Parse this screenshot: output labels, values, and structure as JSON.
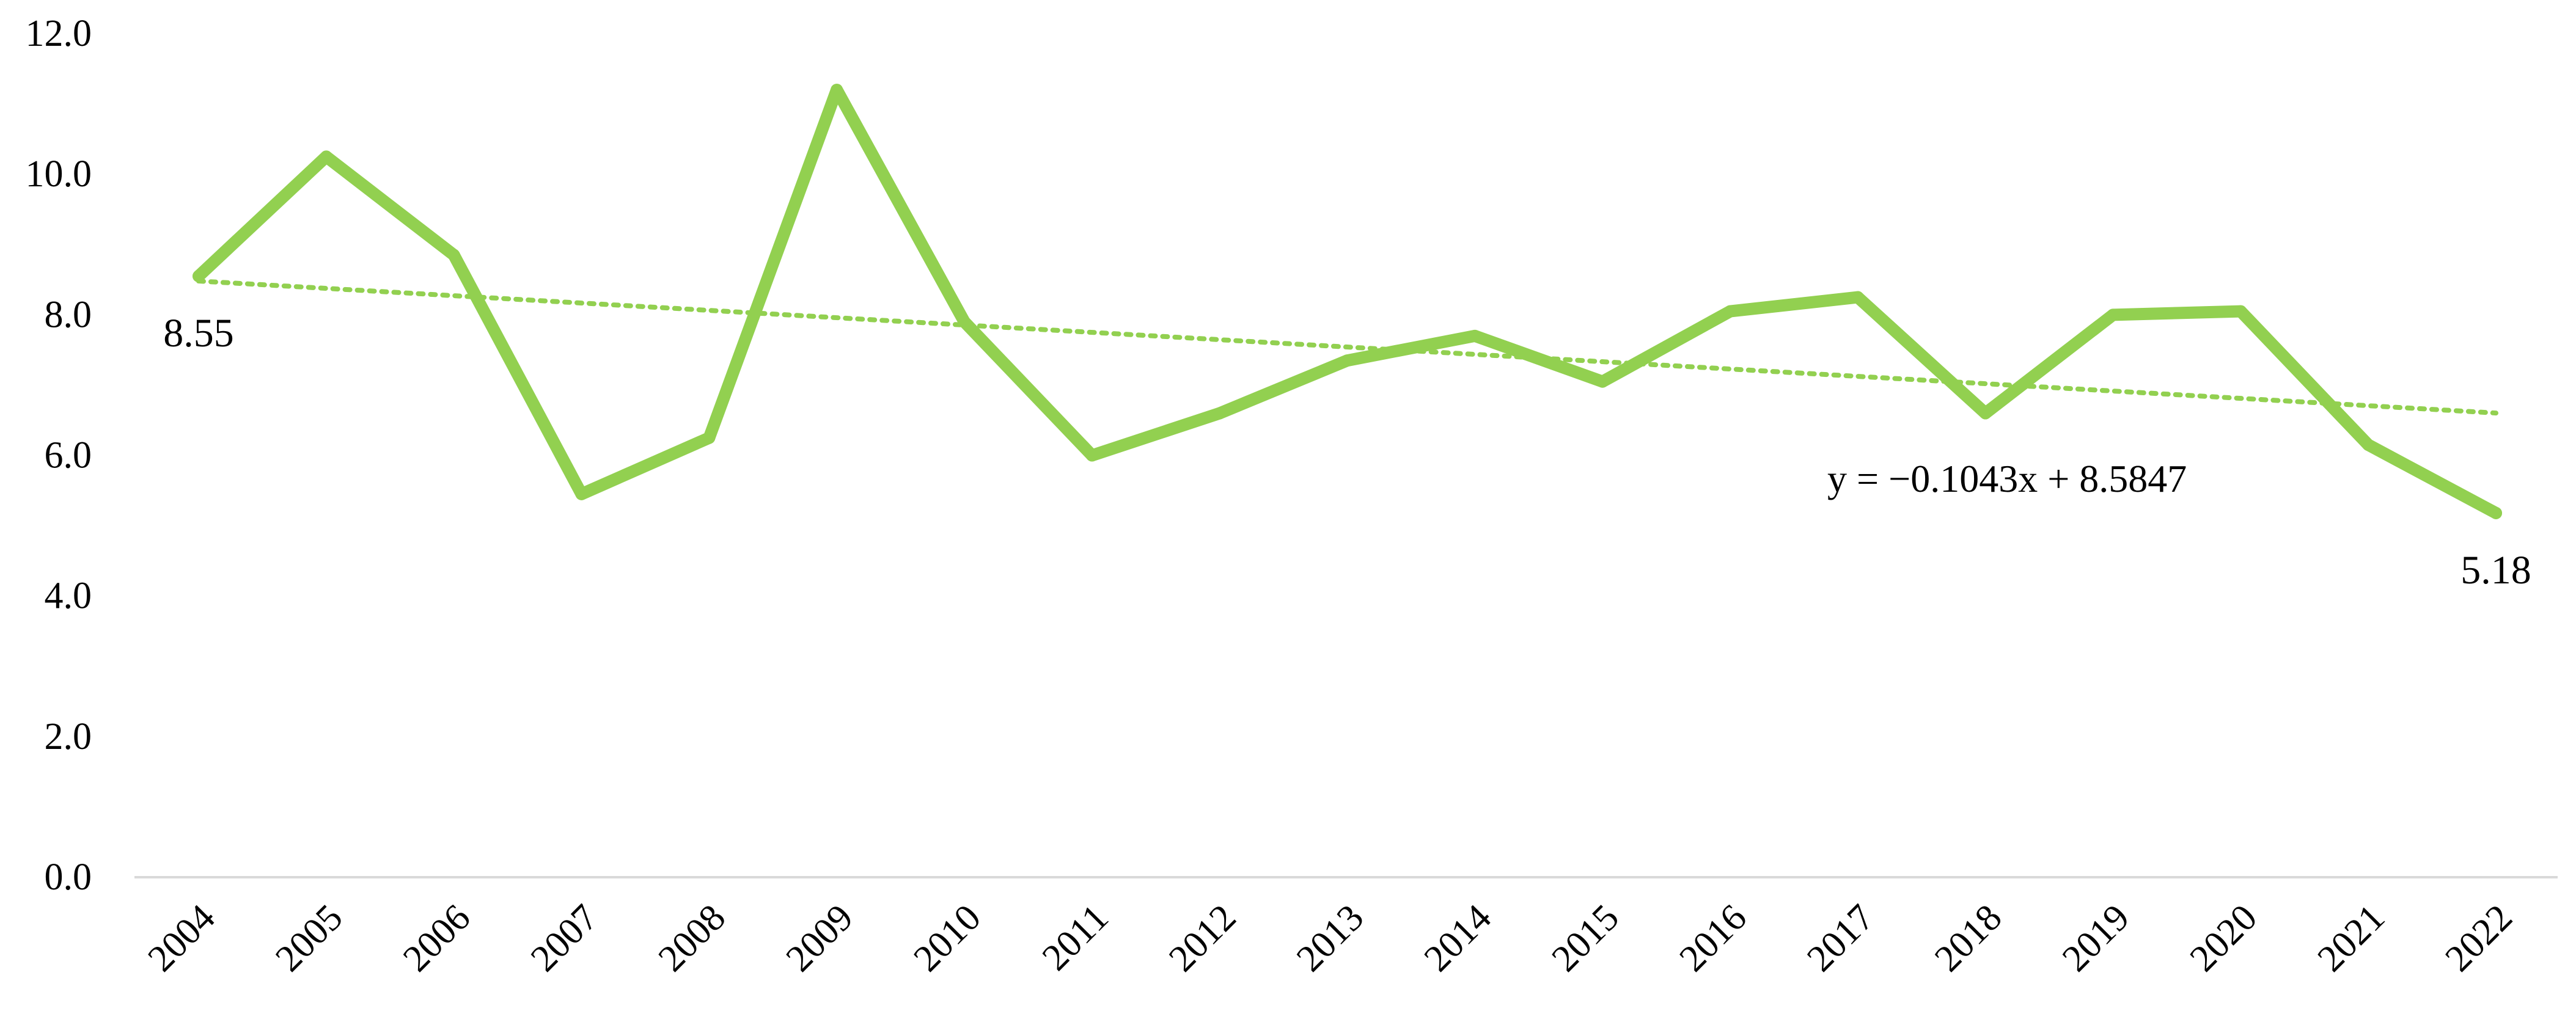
{
  "chart_data": {
    "type": "line",
    "x": [
      "2004",
      "2005",
      "2006",
      "2007",
      "2008",
      "2009",
      "2010",
      "2011",
      "2012",
      "2013",
      "2014",
      "2015",
      "2016",
      "2017",
      "2018",
      "2019",
      "2020",
      "2021",
      "2022"
    ],
    "series": [
      {
        "values": [
          8.55,
          10.25,
          8.85,
          5.45,
          6.25,
          11.2,
          7.9,
          6.0,
          6.6,
          7.35,
          7.7,
          7.05,
          8.05,
          8.25,
          6.6,
          8.0,
          8.05,
          6.15,
          5.18
        ]
      }
    ],
    "trendline": {
      "slope": -0.1043,
      "intercept": 8.5847,
      "equation": "y = −0.1043x + 8.5847"
    },
    "data_labels": [
      {
        "index": 0,
        "text": "8.55"
      },
      {
        "index": 18,
        "text": "5.18"
      }
    ],
    "yticks": [
      "0.0",
      "2.0",
      "4.0",
      "6.0",
      "8.0",
      "10.0",
      "12.0"
    ],
    "ylim": [
      0,
      12
    ],
    "title": "",
    "xlabel": "",
    "ylabel": "",
    "grid": false,
    "colors": {
      "series_line": "#92D050",
      "trendline": "#92D050",
      "axis": "#D9D9D9",
      "text": "#000000"
    }
  }
}
